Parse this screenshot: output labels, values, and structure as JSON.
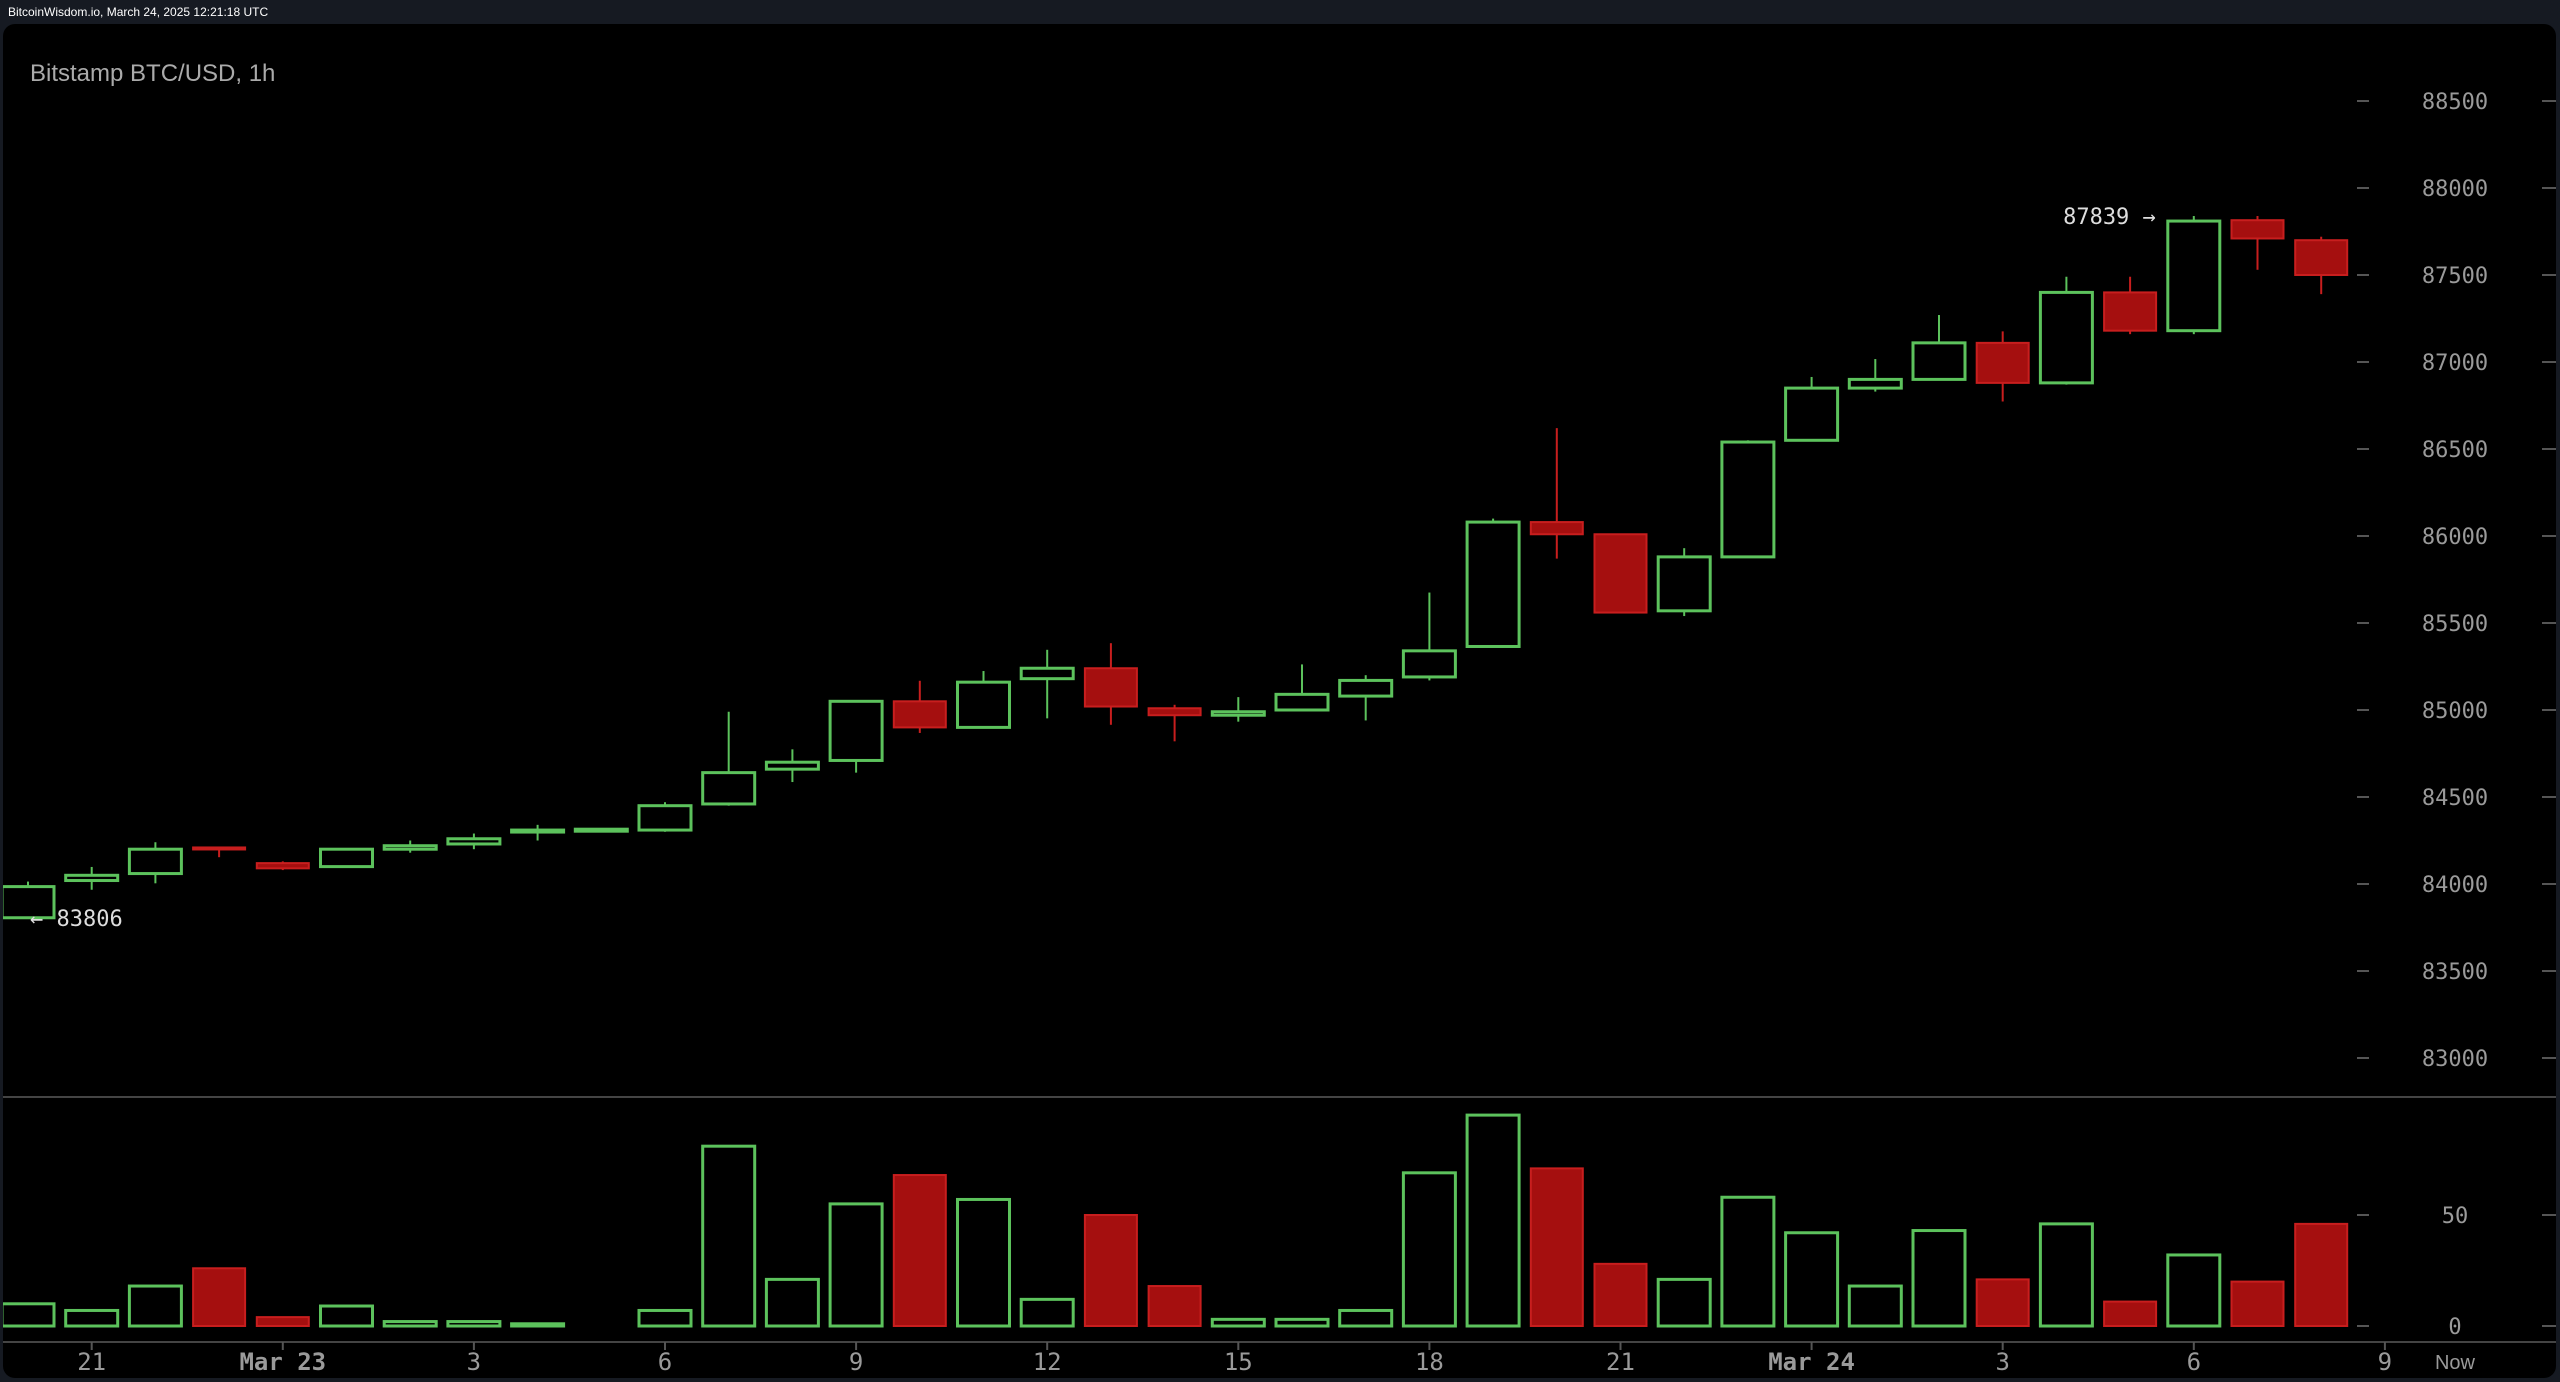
{
  "header": {
    "caption": "BitcoinWisdom.io, March 24, 2025 12:21:18 UTC"
  },
  "chart_title": "Bitstamp BTC/USD, 1h",
  "colors": {
    "up": "#5cc25c",
    "down": "#a50f0f",
    "down_outline": "#c81e1e",
    "background": "#000000",
    "text": "#9a9a9a"
  },
  "chart_data": [
    {
      "type": "candlestick",
      "title": "Bitstamp BTC/USD, 1h",
      "ylim": [
        82800,
        88700
      ],
      "y_ticks": [
        83000,
        83500,
        84000,
        84500,
        85000,
        85500,
        86000,
        86500,
        87000,
        87500,
        88000,
        88500
      ],
      "x_ticks": [
        {
          "index": 1,
          "label": "21"
        },
        {
          "index": 4,
          "label": "Mar 23",
          "bold": true
        },
        {
          "index": 7,
          "label": "3"
        },
        {
          "index": 10,
          "label": "6"
        },
        {
          "index": 13,
          "label": "9"
        },
        {
          "index": 16,
          "label": "12"
        },
        {
          "index": 19,
          "label": "15"
        },
        {
          "index": 22,
          "label": "18"
        },
        {
          "index": 25,
          "label": "21"
        },
        {
          "index": 28,
          "label": "Mar 24",
          "bold": true
        },
        {
          "index": 31,
          "label": "3"
        },
        {
          "index": 34,
          "label": "6"
        },
        {
          "index": 37,
          "label": "9"
        }
      ],
      "now_label": "Now",
      "annotations": [
        {
          "index": 0,
          "price": 83806,
          "label": "← 83806",
          "side": "right"
        },
        {
          "index": 34,
          "price": 87839,
          "label": "87839 →",
          "side": "left"
        }
      ],
      "ohlc": [
        [
          83806,
          84014,
          83806,
          83985
        ],
        [
          84020,
          84098,
          83967,
          84050
        ],
        [
          84060,
          84240,
          84004,
          84200
        ],
        [
          84210,
          84210,
          84154,
          84200
        ],
        [
          84120,
          84130,
          84080,
          84090
        ],
        [
          84100,
          84200,
          84100,
          84200
        ],
        [
          84200,
          84250,
          84180,
          84220
        ],
        [
          84230,
          84290,
          84200,
          84260
        ],
        [
          84300,
          84340,
          84250,
          84310
        ],
        [
          84310,
          84320,
          84305,
          84315
        ],
        [
          84310,
          84470,
          84300,
          84450
        ],
        [
          84460,
          84990,
          84450,
          84640
        ],
        [
          84660,
          84774,
          84586,
          84700
        ],
        [
          84710,
          85050,
          84640,
          85050
        ],
        [
          85050,
          85168,
          84868,
          84900
        ],
        [
          84900,
          85224,
          84900,
          85160
        ],
        [
          85180,
          85346,
          84952,
          85240
        ],
        [
          85240,
          85384,
          84915,
          85020
        ],
        [
          85010,
          85030,
          84820,
          84970
        ],
        [
          84970,
          85074,
          84933,
          84990
        ],
        [
          85000,
          85262,
          85000,
          85090
        ],
        [
          85080,
          85200,
          84940,
          85170
        ],
        [
          85190,
          85675,
          85170,
          85340
        ],
        [
          85365,
          86100,
          85365,
          86080
        ],
        [
          86080,
          86620,
          85870,
          86010
        ],
        [
          86010,
          86010,
          85560,
          85560
        ],
        [
          85570,
          85930,
          85540,
          85880
        ],
        [
          85880,
          86550,
          85880,
          86540
        ],
        [
          86550,
          86914,
          86550,
          86850
        ],
        [
          86850,
          87017,
          86830,
          86900
        ],
        [
          86900,
          87270,
          86900,
          87110
        ],
        [
          87110,
          87176,
          86773,
          86880
        ],
        [
          86880,
          87490,
          86870,
          87400
        ],
        [
          87400,
          87490,
          87160,
          87180
        ],
        [
          87180,
          87839,
          87160,
          87810
        ],
        [
          87815,
          87839,
          87530,
          87710
        ],
        [
          87700,
          87720,
          87390,
          87500
        ]
      ]
    },
    {
      "type": "bar",
      "title": "",
      "ylim": [
        0,
        100
      ],
      "y_ticks": [
        0,
        50
      ],
      "values": [
        10,
        7,
        18,
        26,
        4,
        9,
        2,
        2,
        1,
        0,
        7,
        81,
        21,
        55,
        68,
        57,
        12,
        50,
        18,
        3,
        3,
        7,
        69,
        95,
        71,
        28,
        21,
        58,
        42,
        18,
        43,
        21,
        46,
        11,
        32,
        20,
        46
      ]
    }
  ]
}
